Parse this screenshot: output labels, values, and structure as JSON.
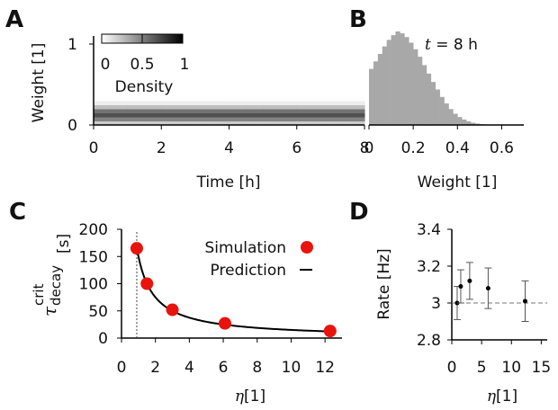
{
  "panels": {
    "A": {
      "letter": "A",
      "xlabel": "Time [h]",
      "ylabel": "Weight [1]",
      "colorbar": {
        "label": "Density",
        "ticks": [
          "0",
          "0.5",
          "1"
        ]
      }
    },
    "B": {
      "letter": "B",
      "xlabel": "Weight [1]",
      "annotation_var": "t",
      "annotation_eq": " = 8 h"
    },
    "C": {
      "letter": "C",
      "xlabel_var": "η",
      "xlabel_unit": "[1]",
      "ylabel_sym": "τ",
      "ylabel_sup": "crit",
      "ylabel_sub": "decay",
      "ylabel_unit": "[s]",
      "legend": {
        "simulation": "Simulation",
        "prediction": "Prediction"
      }
    },
    "D": {
      "letter": "D",
      "xlabel_var": "η",
      "xlabel_unit": "[1]",
      "ylabel": "Rate [Hz]"
    }
  },
  "colors": {
    "simulation": "#e8140c",
    "histogram": "#a8a8a8",
    "prediction": "#000000",
    "error": "#555555"
  },
  "chart_data": [
    {
      "panel": "A",
      "type": "heatmap",
      "x": [
        0,
        0.5,
        1,
        1.5,
        2,
        2.5,
        3,
        3.5,
        4,
        4.5,
        5,
        5.5,
        6,
        6.5,
        7,
        7.5
      ],
      "y_bands": [
        0,
        0.05,
        0.1,
        0.15,
        0.2,
        0.25,
        0.3,
        0.35,
        0.4,
        0.45
      ],
      "xlim": [
        0,
        8
      ],
      "ylim": [
        0,
        1.1
      ],
      "xticks": [
        "0",
        "2",
        "4",
        "6",
        "8"
      ],
      "yticks": [
        "0",
        "1"
      ],
      "colorbar_range": [
        0,
        1
      ]
    },
    {
      "panel": "B",
      "type": "bar",
      "bin_width": 0.02,
      "x": [
        0.0,
        0.02,
        0.04,
        0.06,
        0.08,
        0.1,
        0.12,
        0.14,
        0.16,
        0.18,
        0.2,
        0.22,
        0.24,
        0.26,
        0.28,
        0.3,
        0.32,
        0.34,
        0.36,
        0.38,
        0.4,
        0.42,
        0.44,
        0.46,
        0.48,
        0.5,
        0.52,
        0.54,
        0.56,
        0.58
      ],
      "values": [
        0.6,
        0.68,
        0.76,
        0.84,
        0.91,
        0.96,
        1.0,
        0.98,
        0.94,
        0.88,
        0.81,
        0.73,
        0.64,
        0.55,
        0.46,
        0.38,
        0.3,
        0.23,
        0.17,
        0.12,
        0.085,
        0.058,
        0.038,
        0.024,
        0.015,
        0.009,
        0.005,
        0.003,
        0.002,
        0.001
      ],
      "xlim": [
        0,
        0.7
      ],
      "xticks": [
        "0",
        "0.2",
        "0.4",
        "0.6"
      ]
    },
    {
      "panel": "C",
      "type": "scatter",
      "series": [
        {
          "name": "Simulation",
          "x": [
            0.9,
            1.5,
            3.0,
            6.1,
            12.3
          ],
          "y": [
            165,
            100,
            52,
            27,
            13
          ]
        },
        {
          "name": "Prediction",
          "curve": "y = 150 / x",
          "x_range": [
            0.9,
            12.5
          ]
        }
      ],
      "vline_x": 0.9,
      "xlim": [
        0,
        13
      ],
      "ylim": [
        0,
        200
      ],
      "xticks": [
        "0",
        "2",
        "4",
        "6",
        "8",
        "10",
        "12"
      ],
      "yticks": [
        "0",
        "50",
        "100",
        "150",
        "200"
      ]
    },
    {
      "panel": "D",
      "type": "scatter",
      "series": [
        {
          "x": [
            0.9,
            1.5,
            3.0,
            6.1,
            12.3
          ],
          "y": [
            3.0,
            3.09,
            3.12,
            3.08,
            3.01
          ],
          "err": [
            0.09,
            0.09,
            0.1,
            0.11,
            0.11
          ]
        }
      ],
      "hline_y": 3.0,
      "xlim": [
        0,
        16
      ],
      "ylim": [
        2.8,
        3.4
      ],
      "xticks": [
        "0",
        "5",
        "10",
        "15"
      ],
      "yticks": [
        "2.8",
        "3",
        "3.2",
        "3.4"
      ]
    }
  ]
}
